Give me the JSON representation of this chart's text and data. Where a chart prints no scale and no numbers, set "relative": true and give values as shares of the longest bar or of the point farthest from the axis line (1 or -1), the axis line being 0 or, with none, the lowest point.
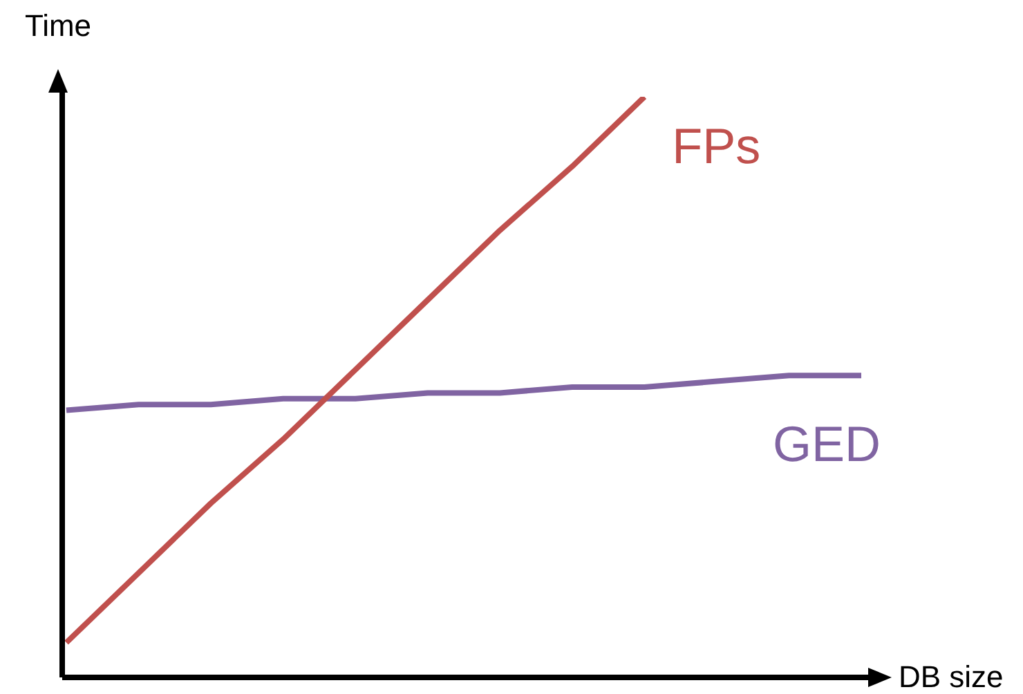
{
  "chart_data": {
    "type": "line",
    "relative": true,
    "xlabel": "DB size",
    "ylabel": "Time",
    "legend": false,
    "grid": false,
    "marker": "none",
    "line_style": "solid",
    "categories": [
      null,
      null,
      null,
      null,
      null,
      null,
      null,
      null,
      null,
      null,
      null,
      null
    ],
    "series": [
      {
        "name": "FPs",
        "color": "#c0504d",
        "values": [
          0.06,
          0.18,
          0.3,
          0.41,
          0.53,
          0.65,
          0.77,
          0.88,
          1.0,
          null,
          null,
          null
        ]
      },
      {
        "name": "GED",
        "color": "#8064a2",
        "values": [
          0.46,
          0.47,
          0.47,
          0.48,
          0.48,
          0.49,
          0.49,
          0.5,
          0.5,
          0.51,
          0.52,
          0.52
        ]
      }
    ]
  }
}
